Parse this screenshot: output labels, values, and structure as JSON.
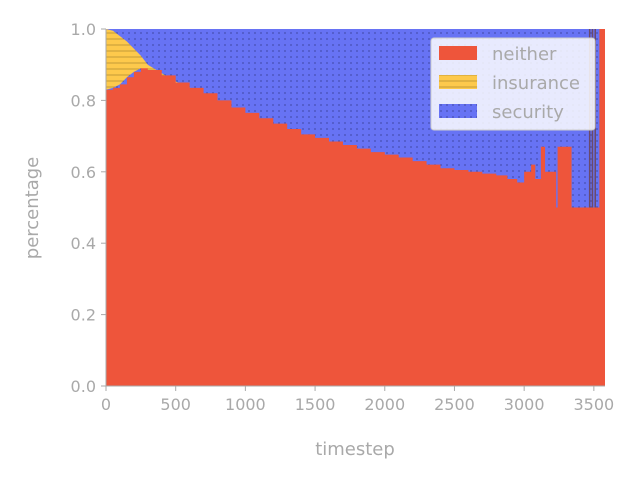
{
  "chart_data": {
    "type": "area",
    "stacked": true,
    "normalized": true,
    "xlabel": "timestep",
    "ylabel": "percentage",
    "xlim": [
      0,
      3580
    ],
    "ylim": [
      0,
      1.0
    ],
    "x_ticks": [
      0,
      500,
      1000,
      1500,
      2000,
      2500,
      3000,
      3500
    ],
    "y_ticks": [
      "0.0",
      "0.2",
      "0.4",
      "0.6",
      "0.8",
      "1.0"
    ],
    "legend_position": "top-right",
    "grid": false,
    "series": [
      {
        "name": "neither",
        "color": "#ee553b",
        "hatch": "none",
        "points": [
          [
            0,
            0.83
          ],
          [
            50,
            0.835
          ],
          [
            100,
            0.845
          ],
          [
            150,
            0.865
          ],
          [
            200,
            0.88
          ],
          [
            250,
            0.89
          ],
          [
            300,
            0.885
          ],
          [
            400,
            0.87
          ],
          [
            500,
            0.85
          ],
          [
            600,
            0.835
          ],
          [
            700,
            0.82
          ],
          [
            800,
            0.8
          ],
          [
            900,
            0.78
          ],
          [
            1000,
            0.765
          ],
          [
            1100,
            0.75
          ],
          [
            1200,
            0.735
          ],
          [
            1300,
            0.72
          ],
          [
            1400,
            0.705
          ],
          [
            1500,
            0.695
          ],
          [
            1600,
            0.685
          ],
          [
            1700,
            0.675
          ],
          [
            1800,
            0.665
          ],
          [
            1900,
            0.655
          ],
          [
            2000,
            0.648
          ],
          [
            2100,
            0.64
          ],
          [
            2200,
            0.63
          ],
          [
            2300,
            0.62
          ],
          [
            2400,
            0.61
          ],
          [
            2500,
            0.605
          ],
          [
            2600,
            0.6
          ],
          [
            2700,
            0.595
          ],
          [
            2800,
            0.59
          ],
          [
            2880,
            0.58
          ],
          [
            2950,
            0.57
          ],
          [
            3000,
            0.6
          ],
          [
            3050,
            0.62
          ],
          [
            3080,
            0.58
          ],
          [
            3120,
            0.67
          ],
          [
            3150,
            0.6
          ],
          [
            3200,
            0.6
          ],
          [
            3230,
            0.5
          ],
          [
            3240,
            0.67
          ],
          [
            3330,
            0.67
          ],
          [
            3340,
            0.5
          ],
          [
            3460,
            0.5
          ],
          [
            3480,
            0.5
          ],
          [
            3520,
            0.5
          ],
          [
            3540,
            1.0
          ],
          [
            3580,
            1.0
          ]
        ]
      },
      {
        "name": "insurance",
        "color": "#fdc94c",
        "hatch": "horizontal",
        "points": [
          [
            0,
            0.17
          ],
          [
            50,
            0.16
          ],
          [
            100,
            0.135
          ],
          [
            150,
            0.1
          ],
          [
            200,
            0.065
          ],
          [
            250,
            0.035
          ],
          [
            300,
            0.015
          ],
          [
            400,
            0.006
          ],
          [
            500,
            0.003
          ],
          [
            600,
            0.001
          ],
          [
            800,
            0
          ],
          [
            3580,
            0
          ]
        ]
      },
      {
        "name": "security",
        "color": "#6773f4",
        "hatch": "dots",
        "fill": "remainder"
      }
    ]
  }
}
